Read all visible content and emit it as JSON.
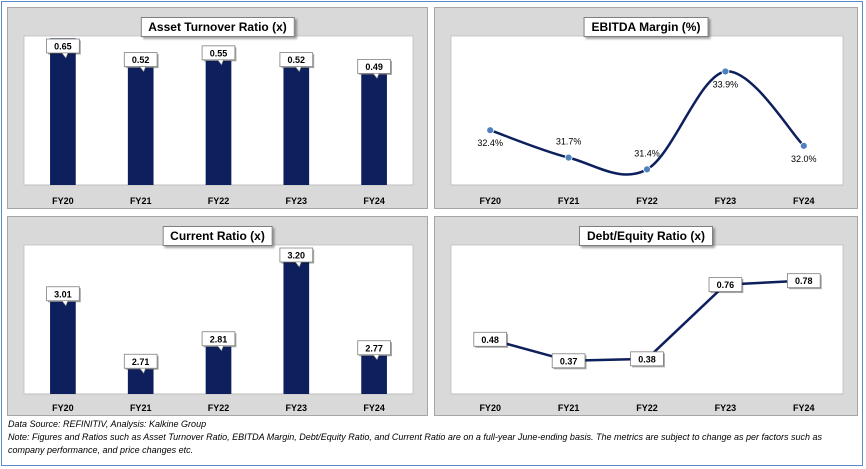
{
  "charts": [
    {
      "title": "Asset Turnover Ratio (x)"
    },
    {
      "title": "EBITDA Margin (%)"
    },
    {
      "title": "Current Ratio (x)"
    },
    {
      "title": "Debt/Equity Ratio (x)"
    }
  ],
  "chart_data": [
    {
      "type": "bar",
      "title": "Asset Turnover Ratio (x)",
      "categories": [
        "FY20",
        "FY21",
        "FY22",
        "FY23",
        "FY24"
      ],
      "values": [
        0.65,
        0.52,
        0.55,
        0.52,
        0.49
      ],
      "labels": [
        "0.65",
        "0.52",
        "0.55",
        "0.52",
        "0.49"
      ],
      "ylim": [
        0,
        0.66
      ],
      "color": "#0d1f5c",
      "grid": false
    },
    {
      "type": "line",
      "title": "EBITDA Margin (%)",
      "categories": [
        "FY20",
        "FY21",
        "FY22",
        "FY23",
        "FY24"
      ],
      "values": [
        32.4,
        31.7,
        31.4,
        33.9,
        32.0
      ],
      "labels": [
        "32.4%",
        "31.7%",
        "31.4%",
        "33.9%",
        "32.0%"
      ],
      "ylim": [
        31.0,
        34.5
      ],
      "color": "#0d1f5c",
      "marker_color": "#4f81bd",
      "smooth": true,
      "grid": false
    },
    {
      "type": "bar",
      "title": "Current Ratio (x)",
      "categories": [
        "FY20",
        "FY21",
        "FY22",
        "FY23",
        "FY24"
      ],
      "values": [
        3.01,
        2.71,
        2.81,
        3.2,
        2.77
      ],
      "labels": [
        "3.01",
        "2.71",
        "2.81",
        "3.20",
        "2.77"
      ],
      "ylim": [
        2.6,
        3.2
      ],
      "color": "#0d1f5c",
      "grid": false
    },
    {
      "type": "line",
      "title": "Debt/Equity Ratio (x)",
      "categories": [
        "FY20",
        "FY21",
        "FY22",
        "FY23",
        "FY24"
      ],
      "values": [
        0.48,
        0.37,
        0.38,
        0.76,
        0.78
      ],
      "labels": [
        "0.48",
        "0.37",
        "0.38",
        "0.76",
        "0.78"
      ],
      "ylim": [
        0.2,
        0.85
      ],
      "color": "#0d1f5c",
      "smooth": false,
      "grid": false
    }
  ],
  "footer": {
    "source": "Data Source: REFINITIV, Analysis: Kalkine Group",
    "note": "Note: Figures and Ratios such as Asset Turnover Ratio, EBITDA Margin, Debt/Equity Ratio, and Current Ratio  are on a full-year June-ending basis. The metrics are subject to change as per factors such as company performance, and price changes etc."
  }
}
